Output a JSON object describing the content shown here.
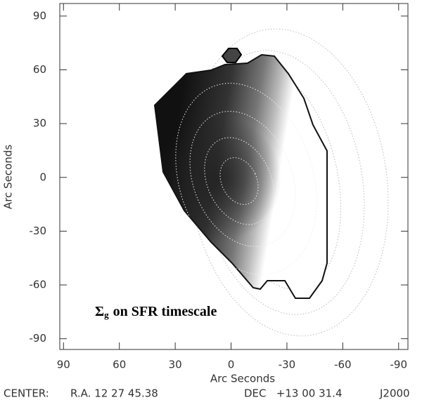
{
  "chart_data": {
    "type": "contour",
    "title": {
      "symbol": "Σ",
      "subscript": "g",
      "text": "on SFR timescale"
    },
    "xlabel": "Arc Seconds",
    "ylabel": "Arc Seconds",
    "xlim": [
      92,
      -95
    ],
    "ylim": [
      -96,
      97
    ],
    "xticks": [
      90,
      60,
      30,
      0,
      -30,
      -60,
      -90
    ],
    "yticks": [
      -90,
      -60,
      -30,
      0,
      30,
      60,
      90
    ],
    "footer": {
      "label": "CENTER:",
      "ra": "R.A. 12 27 45.38",
      "dec": "DEC   +13 00 31.4",
      "epoch": "J2000"
    }
  }
}
